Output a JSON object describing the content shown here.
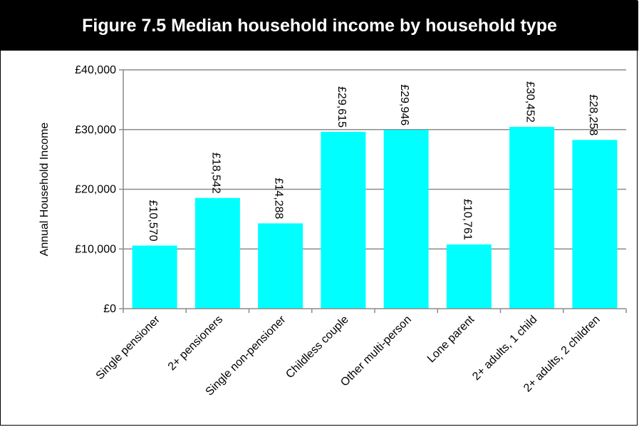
{
  "chart_data": {
    "type": "bar",
    "title": "Figure 7.5 Median household income by household type",
    "ylabel": "Annual Household Income",
    "xlabel": "",
    "categories": [
      "Single pensioner",
      "2+ pensioners",
      "Single non-pensioner",
      "Childless couple",
      "Other multi-person",
      "Lone parent",
      "2+ adults, 1 child",
      "2+ adults, 2 children"
    ],
    "values": [
      10570,
      18542,
      14288,
      29615,
      29946,
      10761,
      30452,
      28258
    ],
    "data_labels": [
      "£10,570",
      "£18,542",
      "£14,288",
      "£29,615",
      "£29,946",
      "£10,761",
      "£30,452",
      "£28,258"
    ],
    "ylim": [
      0,
      40000
    ],
    "yticks": [
      0,
      10000,
      20000,
      30000,
      40000
    ],
    "ytick_labels": [
      "£0",
      "£10,000",
      "£20,000",
      "£30,000",
      "£40,000"
    ],
    "grid": true,
    "legend": "none",
    "bar_color": "#00FFFF",
    "title_bg": "#000000",
    "title_color": "#FFFFFF"
  }
}
